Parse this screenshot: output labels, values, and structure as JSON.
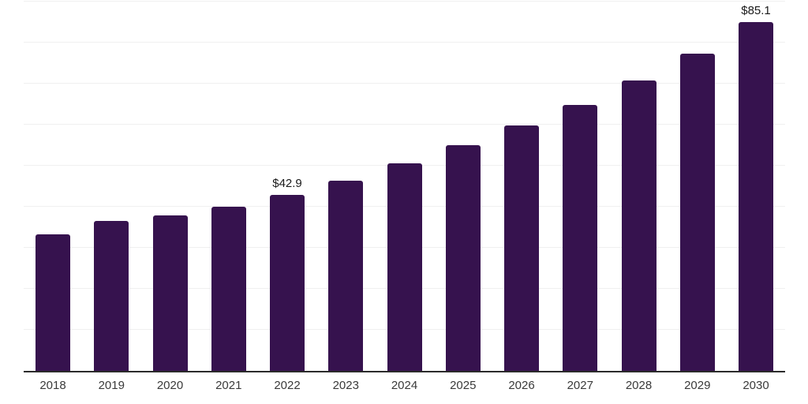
{
  "chart_data": {
    "type": "bar",
    "title": "",
    "xlabel": "",
    "ylabel": "",
    "categories": [
      "2018",
      "2019",
      "2020",
      "2021",
      "2022",
      "2023",
      "2024",
      "2025",
      "2026",
      "2027",
      "2028",
      "2029",
      "2030"
    ],
    "values": [
      33.3,
      36.6,
      37.9,
      40.1,
      42.9,
      46.4,
      50.6,
      55.1,
      59.8,
      64.8,
      70.7,
      77.4,
      85.1
    ],
    "point_labels": [
      null,
      null,
      null,
      null,
      "$42.9",
      null,
      null,
      null,
      null,
      null,
      null,
      null,
      "$85.1"
    ],
    "ylim": [
      0,
      90
    ],
    "gridline_step": 10,
    "grid": true,
    "legend": false,
    "y_axis_ticks_visible": false
  },
  "colors": {
    "background": "#ffffff",
    "bar": "#36124e",
    "gridline": "#f0f0f0",
    "axis_line": "#2b2b2b",
    "tick_label": "#3a3a3a",
    "data_label": "#1a1a1a"
  }
}
